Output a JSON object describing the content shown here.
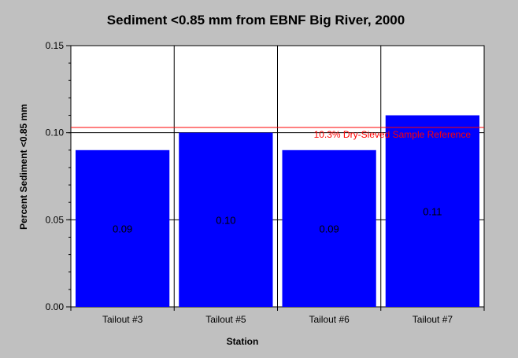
{
  "chart_data": {
    "type": "bar",
    "title": "Sediment <0.85 mm from EBNF Big River, 2000",
    "xlabel": "Station",
    "ylabel": "Percent Sediment <0.85 mm",
    "categories": [
      "Tailout #3",
      "Tailout #5",
      "Tailout #6",
      "Tailout #7"
    ],
    "values": [
      0.09,
      0.1,
      0.09,
      0.11
    ],
    "data_labels": [
      "0.09",
      "0.10",
      "0.09",
      "0.11"
    ],
    "ylim": [
      0,
      0.15
    ],
    "yticks": [
      0.0,
      0.05,
      0.1,
      0.15
    ],
    "ytick_labels": [
      "0.00",
      "0.05",
      "0.10",
      "0.15"
    ],
    "grid": true,
    "bar_color": "#0000ff",
    "reference_line": {
      "value": 0.103,
      "label": "10.3% Dry-Sieved Sample Reference",
      "color": "#ff0000"
    }
  }
}
